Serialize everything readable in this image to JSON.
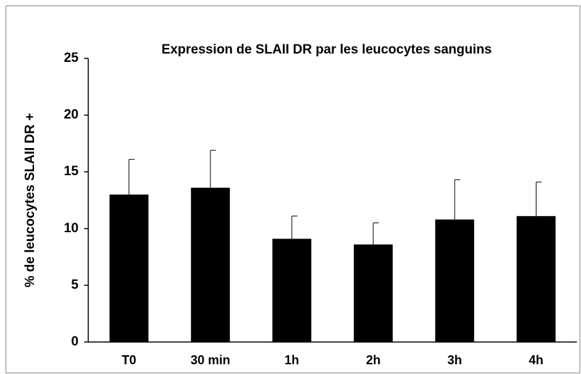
{
  "chart_data": {
    "type": "bar",
    "title": "Expression de SLAII DR par les leucocytes sanguins",
    "y_label": "% de leucocytes SLAII DR +",
    "categories": [
      "T0",
      "30 min",
      "1h",
      "2h",
      "3h",
      "4h"
    ],
    "values": [
      13.0,
      13.6,
      9.1,
      8.6,
      10.8,
      11.1
    ],
    "errors": [
      3.1,
      3.3,
      2.0,
      1.9,
      3.5,
      3.0
    ],
    "color": "#000000",
    "ylim": [
      0,
      25
    ],
    "yticks": [
      0,
      5,
      10,
      15,
      20,
      25
    ],
    "grid": false
  }
}
